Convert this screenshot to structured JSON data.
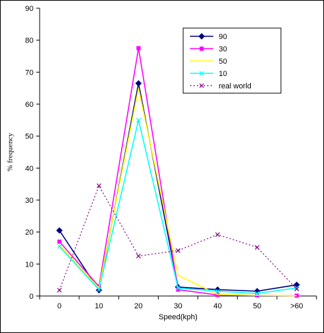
{
  "chart_data": {
    "type": "line",
    "xlabel": "Speed(kph)",
    "ylabel": "% frequency",
    "categories": [
      "0",
      "10",
      "20",
      "30",
      "40",
      "50",
      ">60"
    ],
    "ylim": [
      0,
      90
    ],
    "yticks": [
      0,
      10,
      20,
      30,
      40,
      50,
      60,
      70,
      80,
      90
    ],
    "grid": false,
    "legend_position": "top-right",
    "series": [
      {
        "name": "90",
        "color": "#000080",
        "marker": "diamond",
        "dash": "solid",
        "values": [
          20.5,
          1.8,
          66.5,
          2.8,
          2.0,
          1.5,
          3.5
        ]
      },
      {
        "name": "30",
        "color": "#ff00ff",
        "marker": "square",
        "dash": "solid",
        "values": [
          17.0,
          3.0,
          77.5,
          2.0,
          0.3,
          0.2,
          0.1
        ]
      },
      {
        "name": "50",
        "color": "#ffff00",
        "marker": "none",
        "dash": "solid",
        "values": [
          16.0,
          2.5,
          65.0,
          6.5,
          0.5,
          0.2,
          0.1
        ]
      },
      {
        "name": "10",
        "color": "#00ffff",
        "marker": "x",
        "dash": "solid",
        "values": [
          15.5,
          2.0,
          55.0,
          2.5,
          1.5,
          0.8,
          2.5
        ]
      },
      {
        "name": "real world",
        "color": "#800080",
        "marker": "x",
        "dash": "dotted",
        "values": [
          1.8,
          34.5,
          12.5,
          14.2,
          19.2,
          15.2,
          2.2
        ]
      }
    ]
  }
}
